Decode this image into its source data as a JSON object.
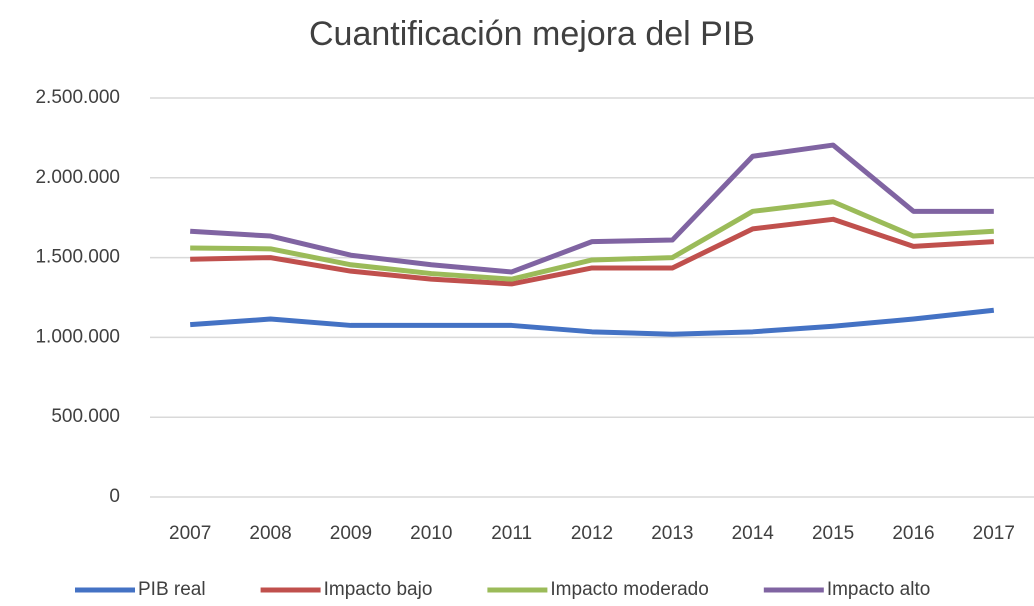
{
  "chart_data": {
    "type": "line",
    "title": "Cuantificación mejora del PIB",
    "categories": [
      "2007",
      "2008",
      "2009",
      "2010",
      "2011",
      "2012",
      "2013",
      "2014",
      "2015",
      "2016",
      "2017"
    ],
    "series": [
      {
        "name": "PIB real",
        "color": "#4472c4",
        "values": [
          1080000,
          1115000,
          1075000,
          1075000,
          1075000,
          1035000,
          1020000,
          1035000,
          1070000,
          1115000,
          1170000
        ]
      },
      {
        "name": "Impacto bajo",
        "color": "#c0504d",
        "values": [
          1490000,
          1500000,
          1415000,
          1365000,
          1335000,
          1435000,
          1435000,
          1680000,
          1740000,
          1570000,
          1600000
        ]
      },
      {
        "name": "Impacto moderado",
        "color": "#9bbb59",
        "values": [
          1560000,
          1555000,
          1455000,
          1400000,
          1365000,
          1485000,
          1500000,
          1790000,
          1850000,
          1635000,
          1665000
        ]
      },
      {
        "name": "Impacto alto",
        "color": "#8064a2",
        "values": [
          1665000,
          1635000,
          1515000,
          1455000,
          1410000,
          1600000,
          1610000,
          2135000,
          2205000,
          1790000,
          1790000
        ]
      }
    ],
    "ylim": [
      0,
      2500000
    ],
    "yticks": [
      0,
      {
        "value": 500000,
        "label": "500.000"
      },
      {
        "value": 1000000,
        "label": "1.000.000"
      },
      {
        "value": 1500000,
        "label": "1.500.000"
      },
      {
        "value": 2000000,
        "label": "2.000.000"
      },
      {
        "value": 2500000,
        "label": "2.500.000"
      }
    ],
    "grid": true,
    "legend": "bottom"
  }
}
